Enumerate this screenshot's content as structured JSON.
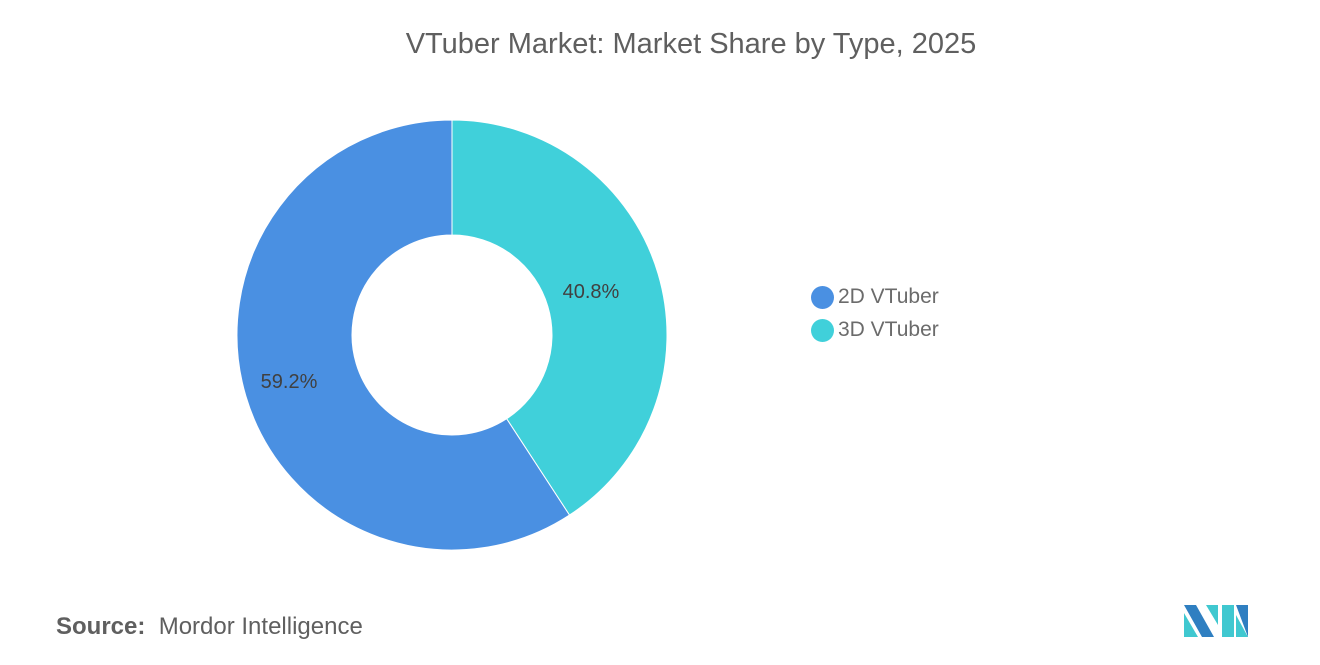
{
  "title": "VTuber Market: Market Share by Type, 2025",
  "chart_data": {
    "type": "pie",
    "variant": "donut",
    "title": "VTuber Market: Market Share by Type, 2025",
    "categories": [
      "3D VTuber",
      "2D VTuber"
    ],
    "values": [
      40.8,
      59.2
    ],
    "labels": [
      "40.8%",
      "59.2%"
    ],
    "colors": [
      "#40d0da",
      "#4a90e2"
    ],
    "legend": {
      "position": "right",
      "items": [
        {
          "label": "2D VTuber",
          "color": "#4a90e2"
        },
        {
          "label": "3D VTuber",
          "color": "#40d0da"
        }
      ]
    }
  },
  "source": {
    "label": "Source:",
    "value": "Mordor Intelligence"
  },
  "logo": {
    "text": "Mordor Intelligence",
    "colors": [
      "#2f7fc1",
      "#40c8d0"
    ]
  }
}
